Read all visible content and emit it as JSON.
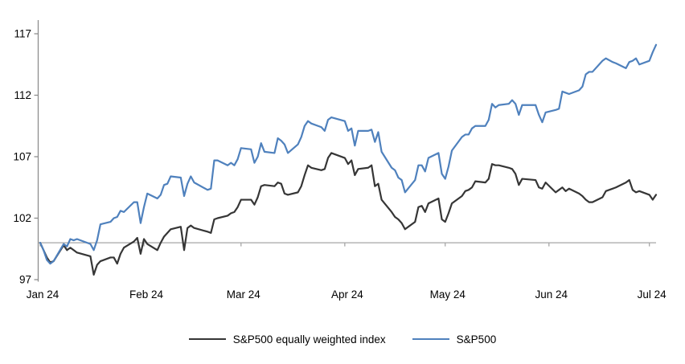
{
  "chart_data": {
    "type": "line",
    "title": "",
    "xlabel": "",
    "ylabel": "",
    "grid": false,
    "legend_position": "bottom",
    "baseline_value": 100,
    "y_axis": {
      "min": 97,
      "max": 118.3,
      "ticks": [
        97,
        102,
        107,
        112,
        117
      ]
    },
    "x_axis": {
      "tick_labels": [
        "Jan 24",
        "Feb 24",
        "Mar 24",
        "Apr 24",
        "May 24",
        "Jun 24",
        "Jul 24"
      ],
      "tick_dates": [
        "2024-01-01",
        "2024-02-01",
        "2024-03-01",
        "2024-04-01",
        "2024-05-01",
        "2024-06-01",
        "2024-07-01"
      ]
    },
    "colors": {
      "axis": "#a6a6a6",
      "y_axis_line": "#8e8e8e",
      "text": "#000000",
      "background": "#ffffff"
    },
    "dates": [
      "2024-01-01",
      "2024-01-02",
      "2024-01-03",
      "2024-01-04",
      "2024-01-05",
      "2024-01-08",
      "2024-01-09",
      "2024-01-10",
      "2024-01-11",
      "2024-01-12",
      "2024-01-16",
      "2024-01-17",
      "2024-01-18",
      "2024-01-19",
      "2024-01-22",
      "2024-01-23",
      "2024-01-24",
      "2024-01-25",
      "2024-01-26",
      "2024-01-29",
      "2024-01-30",
      "2024-01-31",
      "2024-02-01",
      "2024-02-02",
      "2024-02-05",
      "2024-02-06",
      "2024-02-07",
      "2024-02-08",
      "2024-02-09",
      "2024-02-12",
      "2024-02-13",
      "2024-02-14",
      "2024-02-15",
      "2024-02-16",
      "2024-02-20",
      "2024-02-21",
      "2024-02-22",
      "2024-02-23",
      "2024-02-26",
      "2024-02-27",
      "2024-02-28",
      "2024-02-29",
      "2024-03-01",
      "2024-03-04",
      "2024-03-05",
      "2024-03-06",
      "2024-03-07",
      "2024-03-08",
      "2024-03-11",
      "2024-03-12",
      "2024-03-13",
      "2024-03-14",
      "2024-03-15",
      "2024-03-18",
      "2024-03-19",
      "2024-03-20",
      "2024-03-21",
      "2024-03-22",
      "2024-03-25",
      "2024-03-26",
      "2024-03-27",
      "2024-03-28",
      "2024-04-01",
      "2024-04-02",
      "2024-04-03",
      "2024-04-04",
      "2024-04-05",
      "2024-04-08",
      "2024-04-09",
      "2024-04-10",
      "2024-04-11",
      "2024-04-12",
      "2024-04-15",
      "2024-04-16",
      "2024-04-17",
      "2024-04-18",
      "2024-04-19",
      "2024-04-22",
      "2024-04-23",
      "2024-04-24",
      "2024-04-25",
      "2024-04-26",
      "2024-04-29",
      "2024-04-30",
      "2024-05-01",
      "2024-05-02",
      "2024-05-03",
      "2024-05-06",
      "2024-05-07",
      "2024-05-08",
      "2024-05-09",
      "2024-05-10",
      "2024-05-13",
      "2024-05-14",
      "2024-05-15",
      "2024-05-16",
      "2024-05-17",
      "2024-05-20",
      "2024-05-21",
      "2024-05-22",
      "2024-05-23",
      "2024-05-24",
      "2024-05-28",
      "2024-05-29",
      "2024-05-30",
      "2024-05-31",
      "2024-06-03",
      "2024-06-04",
      "2024-06-05",
      "2024-06-06",
      "2024-06-07",
      "2024-06-10",
      "2024-06-11",
      "2024-06-12",
      "2024-06-13",
      "2024-06-14",
      "2024-06-17",
      "2024-06-18",
      "2024-06-20",
      "2024-06-21",
      "2024-06-24",
      "2024-06-25",
      "2024-06-26",
      "2024-06-27",
      "2024-06-28",
      "2024-07-01",
      "2024-07-02",
      "2024-07-03"
    ],
    "series": [
      {
        "name": "S&P500 equally weighted index",
        "color": "#363636",
        "values": [
          100.0,
          99.4,
          98.8,
          98.4,
          98.5,
          99.8,
          99.4,
          99.6,
          99.4,
          99.2,
          98.9,
          97.4,
          98.2,
          98.5,
          98.8,
          98.8,
          98.3,
          99.1,
          99.6,
          100.1,
          100.4,
          99.1,
          100.3,
          99.9,
          99.4,
          100.0,
          100.5,
          100.8,
          101.1,
          101.3,
          99.4,
          101.2,
          101.4,
          101.2,
          100.9,
          100.8,
          101.9,
          102.0,
          102.2,
          102.4,
          102.5,
          102.9,
          103.5,
          103.5,
          103.1,
          103.7,
          104.6,
          104.7,
          104.6,
          104.9,
          104.8,
          104.0,
          103.9,
          104.1,
          104.6,
          105.5,
          106.3,
          106.1,
          105.9,
          106.0,
          106.9,
          107.3,
          106.9,
          106.4,
          106.7,
          105.5,
          106.0,
          106.1,
          106.3,
          104.6,
          104.8,
          103.5,
          102.5,
          102.1,
          101.9,
          101.6,
          101.1,
          101.7,
          102.9,
          103.0,
          102.5,
          103.2,
          103.6,
          101.9,
          101.7,
          102.4,
          103.2,
          103.8,
          104.2,
          104.3,
          104.5,
          105.0,
          104.9,
          105.2,
          106.4,
          106.3,
          106.3,
          106.1,
          106.0,
          105.6,
          104.7,
          105.2,
          105.1,
          104.5,
          104.4,
          104.9,
          104.1,
          104.3,
          104.5,
          104.2,
          104.4,
          104.0,
          103.8,
          103.5,
          103.3,
          103.3,
          103.7,
          104.2,
          104.4,
          104.5,
          104.9,
          105.1,
          104.3,
          104.1,
          104.2,
          103.9,
          103.5,
          103.9
        ]
      },
      {
        "name": "S&P500",
        "color": "#4f81bd",
        "values": [
          100.0,
          99.4,
          98.6,
          98.3,
          98.5,
          99.9,
          99.7,
          100.3,
          100.2,
          100.3,
          99.9,
          99.4,
          100.2,
          101.5,
          101.7,
          102.0,
          102.1,
          102.6,
          102.5,
          103.3,
          103.3,
          101.6,
          102.9,
          104.0,
          103.6,
          103.9,
          104.7,
          104.8,
          105.4,
          105.3,
          103.8,
          104.8,
          105.4,
          104.9,
          104.3,
          104.4,
          106.7,
          106.7,
          106.3,
          106.5,
          106.3,
          106.8,
          107.7,
          107.6,
          106.5,
          107.0,
          108.1,
          107.4,
          107.3,
          108.5,
          108.3,
          108.0,
          107.3,
          108.0,
          108.6,
          109.5,
          109.9,
          109.7,
          109.4,
          109.1,
          110.0,
          110.2,
          109.9,
          109.1,
          109.3,
          107.9,
          109.1,
          109.1,
          109.2,
          108.2,
          109.0,
          107.4,
          106.1,
          105.9,
          105.3,
          105.1,
          104.1,
          105.1,
          106.3,
          106.3,
          105.8,
          106.9,
          107.3,
          105.6,
          105.2,
          106.2,
          107.5,
          108.6,
          108.8,
          108.8,
          109.3,
          109.5,
          109.5,
          110.0,
          111.3,
          111.0,
          111.2,
          111.3,
          111.6,
          111.3,
          110.4,
          111.2,
          111.2,
          110.4,
          109.8,
          110.6,
          110.8,
          110.9,
          112.3,
          112.2,
          112.1,
          112.4,
          112.7,
          113.7,
          113.9,
          113.9,
          114.8,
          115.0,
          114.7,
          114.6,
          114.2,
          114.7,
          114.8,
          115.0,
          114.5,
          114.8,
          115.5,
          116.1
        ]
      }
    ]
  }
}
